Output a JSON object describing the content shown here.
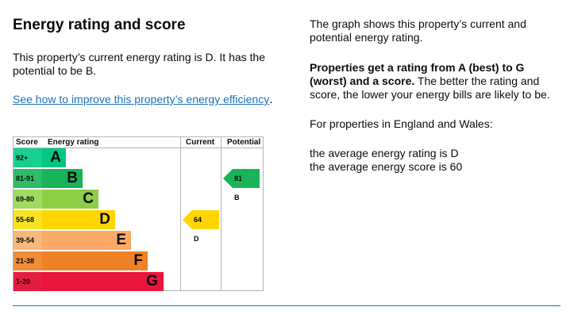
{
  "left": {
    "title": "Energy rating and score",
    "intro": "This property’s current energy rating is D. It has the potential to be B.",
    "link_text": "See how to improve this property’s energy efficiency",
    "link_suffix": "."
  },
  "right": {
    "graph_text": "The graph shows this property’s current and potential energy rating.",
    "bold_text": "Properties get a rating from A (best) to G (worst) and a score.",
    "normal_text": " The better the rating and score, the lower your energy bills are likely to be.",
    "region_text": "For properties in England and Wales:",
    "avg_rating": "the average energy rating is D",
    "avg_score": "the average energy score is 60"
  },
  "chart": {
    "headers": {
      "score": "Score",
      "energy_rating": "Energy rating",
      "current": "Current",
      "potential": "Potential"
    },
    "bands": [
      {
        "range": "92+",
        "letter": "A",
        "color": "#00c781"
      },
      {
        "range": "81-91",
        "letter": "B",
        "color": "#19b459"
      },
      {
        "range": "69-80",
        "letter": "C",
        "color": "#8dce46"
      },
      {
        "range": "55-68",
        "letter": "D",
        "color": "#ffd500"
      },
      {
        "range": "39-54",
        "letter": "E",
        "color": "#fcaa65"
      },
      {
        "range": "21-38",
        "letter": "F",
        "color": "#ef8023"
      },
      {
        "range": "1-20",
        "letter": "G",
        "color": "#e9153b"
      }
    ],
    "current": {
      "label": "64 D",
      "score": 64,
      "band": "D",
      "color": "#ffd500"
    },
    "potential": {
      "label": "81 B",
      "score": 81,
      "band": "B",
      "color": "#19b459"
    }
  },
  "colors": {
    "link": "#1d70b8",
    "divider": "#1d70b8",
    "border": "#b1b4b6"
  }
}
